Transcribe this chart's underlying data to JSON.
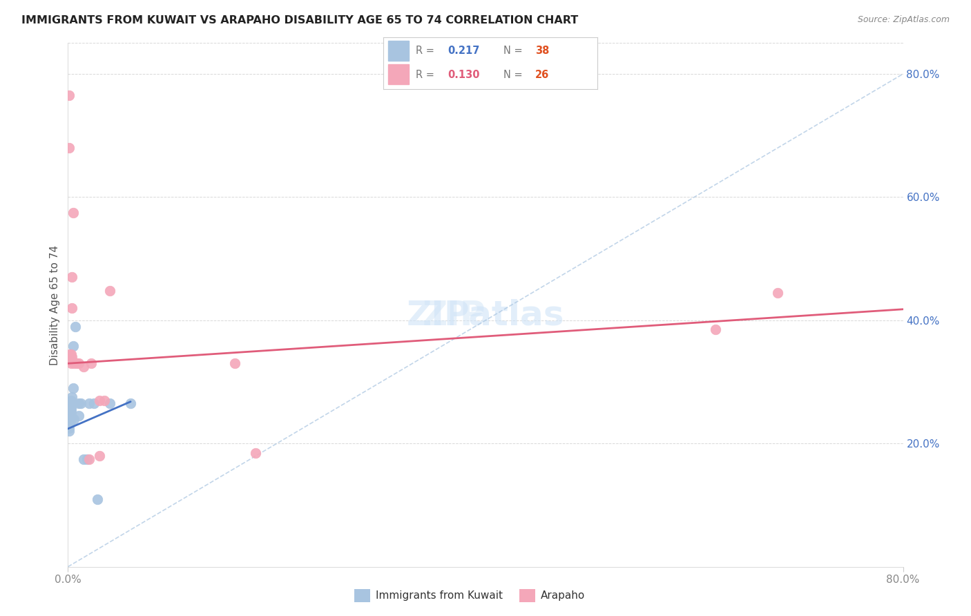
{
  "title": "IMMIGRANTS FROM KUWAIT VS ARAPAHO DISABILITY AGE 65 TO 74 CORRELATION CHART",
  "source": "Source: ZipAtlas.com",
  "ylabel": "Disability Age 65 to 74",
  "xlim": [
    0.0,
    0.8
  ],
  "ylim": [
    0.0,
    0.85
  ],
  "legend_r1": "R = 0.217",
  "legend_n1": "N = 38",
  "legend_r2": "R = 0.130",
  "legend_n2": "N = 26",
  "blue_scatter_color": "#a8c4e0",
  "blue_line_color": "#4472c4",
  "pink_scatter_color": "#f4a7b9",
  "pink_line_color": "#e05c7a",
  "dashed_line_color": "#a8c4e0",
  "background_color": "#ffffff",
  "grid_color": "#d8d8d8",
  "kuwait_x": [
    0.001,
    0.001,
    0.001,
    0.001,
    0.001,
    0.002,
    0.002,
    0.002,
    0.002,
    0.002,
    0.002,
    0.002,
    0.002,
    0.002,
    0.002,
    0.003,
    0.003,
    0.003,
    0.003,
    0.003,
    0.003,
    0.003,
    0.004,
    0.004,
    0.005,
    0.005,
    0.006,
    0.007,
    0.01,
    0.01,
    0.012,
    0.015,
    0.018,
    0.02,
    0.025,
    0.028,
    0.04,
    0.06
  ],
  "kuwait_y": [
    0.24,
    0.235,
    0.23,
    0.225,
    0.22,
    0.265,
    0.262,
    0.258,
    0.255,
    0.252,
    0.248,
    0.244,
    0.242,
    0.238,
    0.234,
    0.27,
    0.265,
    0.26,
    0.255,
    0.25,
    0.245,
    0.24,
    0.275,
    0.268,
    0.358,
    0.29,
    0.24,
    0.39,
    0.265,
    0.245,
    0.265,
    0.175,
    0.175,
    0.265,
    0.265,
    0.11,
    0.265,
    0.265
  ],
  "arapaho_x": [
    0.001,
    0.001,
    0.002,
    0.002,
    0.003,
    0.003,
    0.003,
    0.004,
    0.004,
    0.004,
    0.004,
    0.005,
    0.006,
    0.008,
    0.01,
    0.015,
    0.02,
    0.022,
    0.03,
    0.03,
    0.035,
    0.04,
    0.16,
    0.18,
    0.62,
    0.68
  ],
  "arapaho_y": [
    0.765,
    0.68,
    0.345,
    0.335,
    0.345,
    0.335,
    0.33,
    0.47,
    0.42,
    0.34,
    0.335,
    0.575,
    0.33,
    0.33,
    0.33,
    0.325,
    0.175,
    0.33,
    0.18,
    0.27,
    0.27,
    0.448,
    0.33,
    0.185,
    0.385,
    0.445
  ],
  "blue_line_x0": 0.0,
  "blue_line_y0": 0.224,
  "blue_line_x1": 0.06,
  "blue_line_y1": 0.268,
  "pink_line_x0": 0.0,
  "pink_line_y0": 0.33,
  "pink_line_x1": 0.8,
  "pink_line_y1": 0.418,
  "r_tick_color": "#888888",
  "n_tick_color": "#e05020"
}
